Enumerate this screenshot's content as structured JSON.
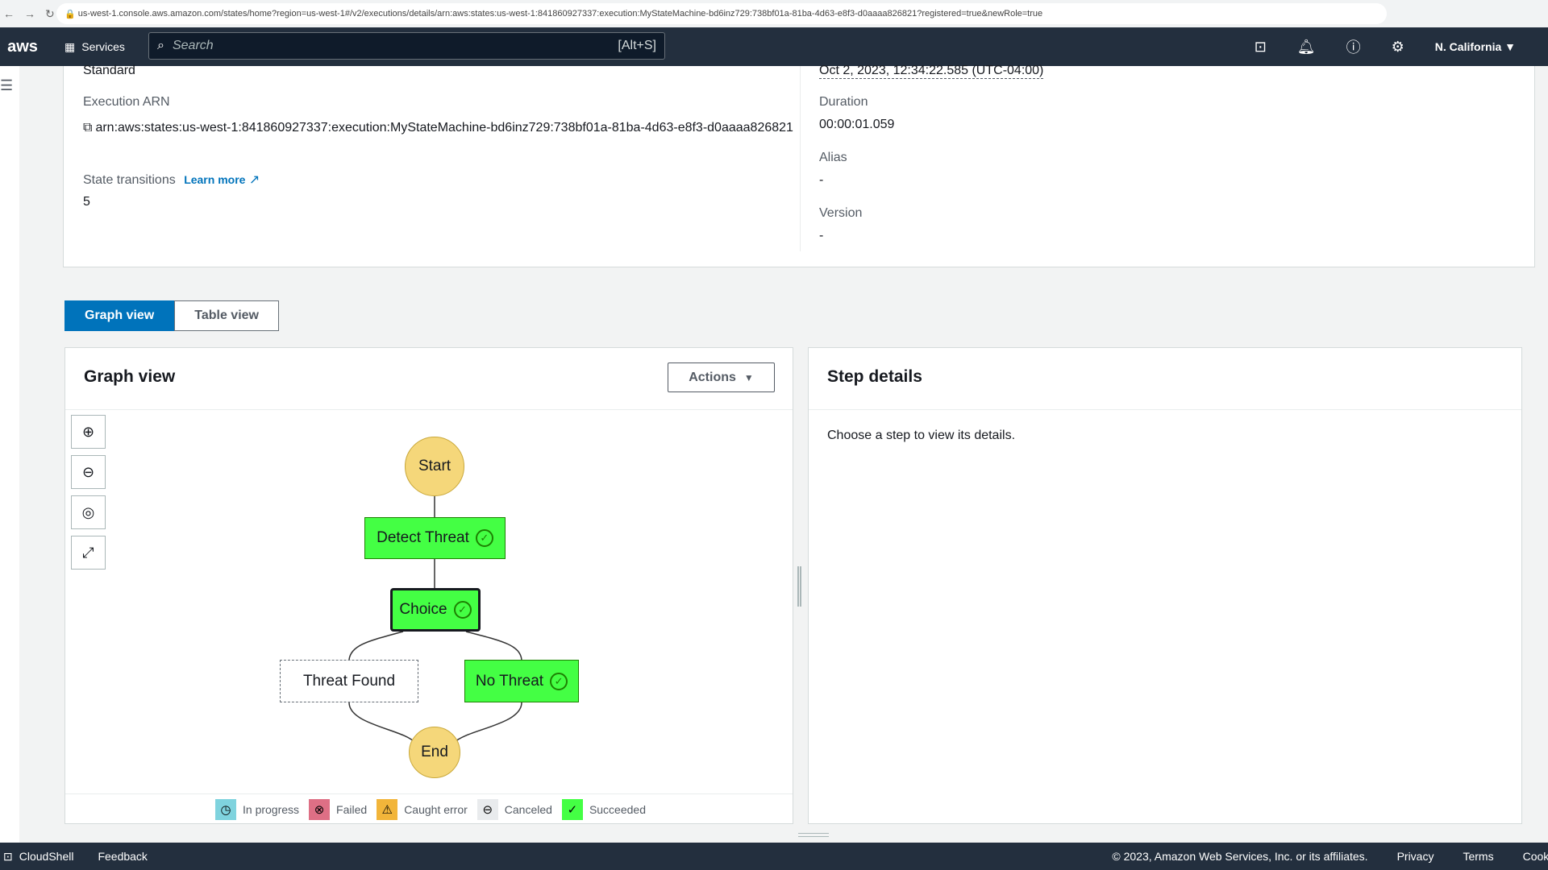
{
  "browser": {
    "url": "us-west-1.console.aws.amazon.com/states/home?region=us-west-1#/v2/executions/details/arn:aws:states:us-west-1:841860927337:execution:MyStateMachine-bd6inz729:738bf01a-81ba-4d63-e8f3-d0aaaa826821?registered=true&newRole=true"
  },
  "nav": {
    "logo": "aws",
    "services": "Services",
    "search_placeholder": "Search",
    "search_shortcut": "[Alt+S]",
    "region": "N. California ▼"
  },
  "details": {
    "type_value": "Standard",
    "arn_label": "Execution ARN",
    "arn_value": "arn:aws:states:us-west-1:841860927337:execution:MyStateMachine-bd6inz729:738bf01a-81ba-4d63-e8f3-d0aaaa826821",
    "transitions_label": "State transitions",
    "learn_more": "Learn more",
    "transitions_value": "5",
    "end_time": "Oct 2, 2023, 12:34:22.585 (UTC-04:00)",
    "duration_label": "Duration",
    "duration_value": "00:00:01.059",
    "alias_label": "Alias",
    "alias_value": "-",
    "version_label": "Version",
    "version_value": "-"
  },
  "tabs": [
    {
      "label": "Graph view",
      "active": true
    },
    {
      "label": "Table view",
      "active": false
    }
  ],
  "graph": {
    "title": "Graph view",
    "actions": "Actions",
    "nodes": {
      "start": "Start",
      "detect": "Detect Threat",
      "choice": "Choice",
      "found": "Threat Found",
      "nothreat": "No Threat",
      "end": "End"
    },
    "legend": [
      {
        "label": "In progress",
        "color": "#7fd3de"
      },
      {
        "label": "Failed",
        "color": "#de6f85"
      },
      {
        "label": "Caught error",
        "color": "#f2b53a"
      },
      {
        "label": "Canceled",
        "color": "#d5dbdb"
      },
      {
        "label": "Succeeded",
        "color": "#44ff44"
      }
    ]
  },
  "step": {
    "title": "Step details",
    "empty": "Choose a step to view its details."
  },
  "footer": {
    "cloudshell": "CloudShell",
    "feedback": "Feedback",
    "copyright": "© 2023, Amazon Web Services, Inc. or its affiliates.",
    "privacy": "Privacy",
    "terms": "Terms",
    "cookie": "Cookie preferences"
  }
}
